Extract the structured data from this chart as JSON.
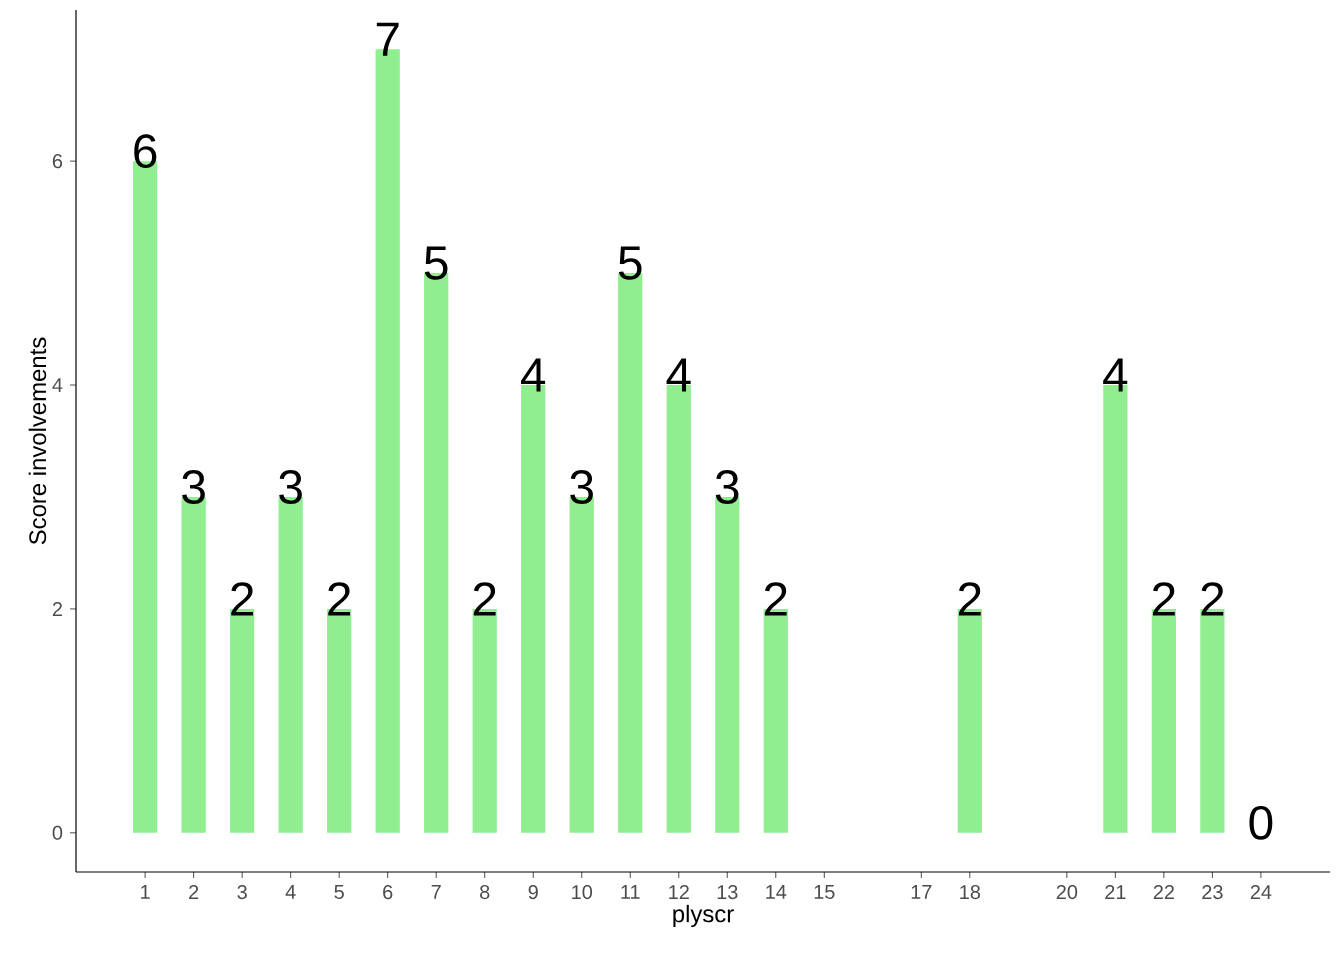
{
  "chart_data": {
    "type": "bar",
    "xlabel": "plyscr",
    "ylabel": "Score involvements",
    "x": [
      1,
      2,
      3,
      4,
      5,
      6,
      7,
      8,
      9,
      10,
      11,
      12,
      13,
      14,
      18,
      21,
      22,
      23,
      24
    ],
    "values": [
      6,
      3,
      2,
      3,
      2,
      7,
      5,
      2,
      4,
      3,
      5,
      4,
      3,
      2,
      2,
      4,
      2,
      2,
      0
    ],
    "value_labels": [
      "6",
      "3",
      "2",
      "3",
      "2",
      "7",
      "5",
      "2",
      "4",
      "3",
      "5",
      "4",
      "3",
      "2",
      "2",
      "4",
      "2",
      "2",
      "0"
    ],
    "color": "#90ee90",
    "grid": false,
    "xlim": [
      -0.425,
      25.425
    ],
    "ylim": [
      -0.35,
      7.35
    ],
    "xticks": [
      1,
      2,
      3,
      4,
      5,
      6,
      7,
      8,
      9,
      10,
      11,
      12,
      13,
      14,
      15,
      17,
      18,
      20,
      21,
      22,
      23,
      24
    ],
    "yticks": [
      0,
      2,
      4,
      6
    ]
  }
}
